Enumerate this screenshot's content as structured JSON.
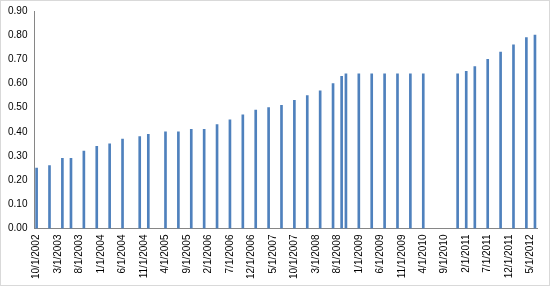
{
  "chart_data": {
    "type": "bar",
    "categories": [
      "10/1/2002",
      null,
      null,
      null,
      null,
      "3/1/2003",
      null,
      null,
      null,
      null,
      "8/1/2003",
      null,
      null,
      null,
      null,
      "1/1/2004",
      null,
      null,
      null,
      null,
      "6/1/2004",
      null,
      null,
      null,
      null,
      "11/1/2004",
      null,
      null,
      null,
      null,
      "4/1/2005",
      null,
      null,
      null,
      null,
      "9/1/2005",
      null,
      null,
      null,
      null,
      "2/1/2006",
      null,
      null,
      null,
      null,
      "7/1/2006",
      null,
      null,
      null,
      null,
      "12/1/2006",
      null,
      null,
      null,
      null,
      "5/1/2007",
      null,
      null,
      null,
      null,
      "10/1/2007",
      null,
      null,
      null,
      null,
      "3/1/2008",
      null,
      null,
      null,
      null,
      "8/1/2008",
      null,
      null,
      null,
      null,
      "1/1/2009",
      null,
      null,
      null,
      null,
      "6/1/2009",
      null,
      null,
      null,
      null,
      "11/1/2009",
      null,
      null,
      null,
      null,
      "4/1/2010",
      null,
      null,
      null,
      null,
      "9/1/2010",
      null,
      null,
      null,
      null,
      "2/1/2011",
      null,
      null,
      null,
      null,
      "7/1/2011",
      null,
      null,
      null,
      null,
      "12/1/2011",
      null,
      null,
      null,
      null,
      "5/1/2012",
      null
    ],
    "values": [
      0.25,
      null,
      null,
      0.26,
      null,
      null,
      0.29,
      null,
      0.29,
      null,
      null,
      0.32,
      null,
      null,
      0.34,
      null,
      null,
      0.35,
      null,
      null,
      0.37,
      null,
      null,
      null,
      0.38,
      null,
      0.39,
      null,
      null,
      null,
      0.4,
      null,
      null,
      0.4,
      null,
      null,
      0.41,
      null,
      null,
      0.41,
      null,
      null,
      0.43,
      null,
      null,
      0.45,
      null,
      null,
      0.47,
      null,
      null,
      0.49,
      null,
      null,
      0.5,
      null,
      null,
      0.51,
      null,
      null,
      0.53,
      null,
      null,
      0.55,
      null,
      null,
      0.57,
      null,
      null,
      0.6,
      null,
      0.63,
      0.64,
      null,
      null,
      0.64,
      null,
      null,
      0.64,
      null,
      null,
      0.64,
      null,
      null,
      0.64,
      null,
      null,
      0.64,
      null,
      null,
      0.64,
      null,
      null,
      null,
      null,
      null,
      null,
      null,
      0.64,
      null,
      0.65,
      null,
      0.67,
      null,
      null,
      0.7,
      null,
      null,
      0.73,
      null,
      null,
      0.76,
      null,
      null,
      0.79,
      null,
      0.8
    ],
    "color": "#4f81bd",
    "ylim": [
      0,
      0.9
    ],
    "yticks": [
      {
        "value": 0,
        "label": "0.00"
      },
      {
        "value": 0.1,
        "label": "0.10"
      },
      {
        "value": 0.2,
        "label": "0.20"
      },
      {
        "value": 0.3,
        "label": "0.30"
      },
      {
        "value": 0.4,
        "label": "0.40"
      },
      {
        "value": 0.5,
        "label": "0.50"
      },
      {
        "value": 0.6,
        "label": "0.60"
      },
      {
        "value": 0.7,
        "label": "0.70"
      },
      {
        "value": 0.8,
        "label": "0.80"
      },
      {
        "value": 0.9,
        "label": "0.90"
      }
    ],
    "grid": false
  }
}
